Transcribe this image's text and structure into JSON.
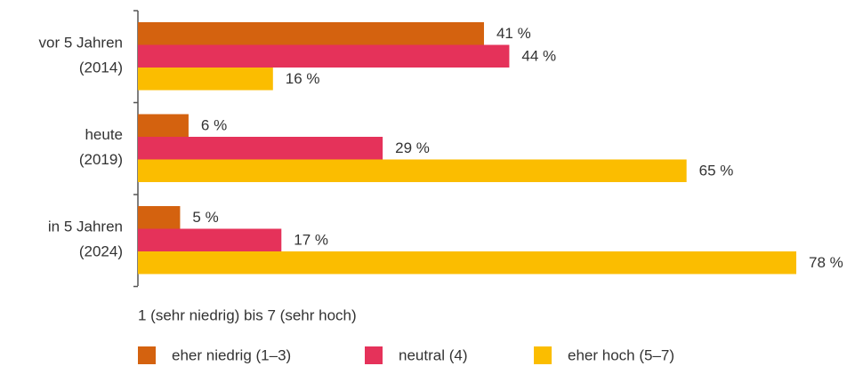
{
  "chart_data": {
    "type": "bar",
    "orientation": "horizontal",
    "categories": [
      [
        "vor 5 Jahren",
        "(2014)"
      ],
      [
        "heute",
        "(2019)"
      ],
      [
        "in 5 Jahren",
        "(2024)"
      ]
    ],
    "legend_title": "1 (sehr niedrig) bis 7 (sehr hoch)",
    "series": [
      {
        "name": "eher niedrig (1–3)",
        "color": "#d4620f",
        "values": [
          41,
          6,
          5
        ],
        "value_labels": [
          "41 %",
          "6 %",
          "5 %"
        ]
      },
      {
        "name": "neutral (4)",
        "color": "#e5325a",
        "values": [
          44,
          29,
          17
        ],
        "value_labels": [
          "44 %",
          "29 %",
          "17 %"
        ]
      },
      {
        "name": "eher hoch (5–7)",
        "color": "#fbbd00",
        "values": [
          16,
          65,
          78
        ],
        "value_labels": [
          "16 %",
          "65 %",
          "78 %"
        ]
      }
    ]
  }
}
